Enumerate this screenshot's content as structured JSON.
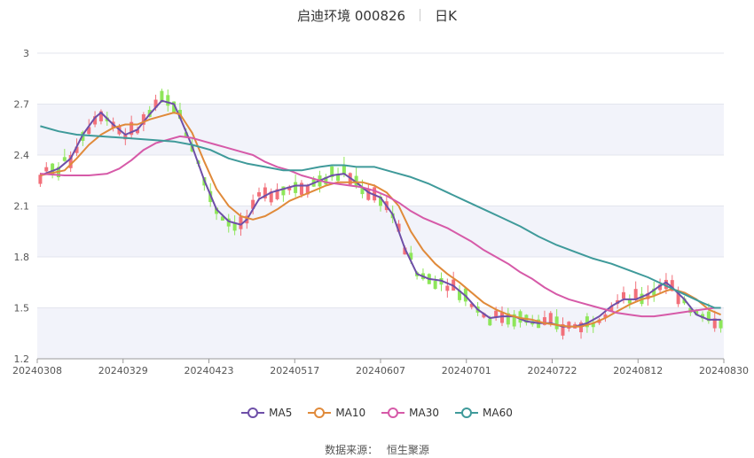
{
  "header": {
    "title": "启迪环境 000826",
    "period": "日K"
  },
  "source": {
    "label": "数据来源：",
    "name": "恒生聚源"
  },
  "colors": {
    "up": "#f2707a",
    "down": "#8ee65a",
    "MA5": "#6e4fa8",
    "MA10": "#e08a3a",
    "MA30": "#d65aa8",
    "MA60": "#3f9a9a",
    "band": "#f2f3fa",
    "grid": "#e3e5ee"
  },
  "chart_data": {
    "type": "candlestick",
    "ylim": [
      1.2,
      3.0
    ],
    "y_ticks": [
      "1.2",
      "1.5",
      "1.8",
      "2.1",
      "2.4",
      "2.7",
      "3"
    ],
    "x_tick_labels": [
      "20240308",
      "20240329",
      "20240423",
      "20240517",
      "20240607",
      "20240701",
      "20240722",
      "20240812",
      "20240830"
    ],
    "legend": [
      "MA5",
      "MA10",
      "MA30",
      "MA60"
    ],
    "ma_series": [
      {
        "name": "MA5",
        "points": [
          [
            0,
            2.28
          ],
          [
            3,
            2.32
          ],
          [
            5,
            2.38
          ],
          [
            7,
            2.52
          ],
          [
            9,
            2.62
          ],
          [
            10,
            2.65
          ],
          [
            12,
            2.58
          ],
          [
            14,
            2.52
          ],
          [
            16,
            2.55
          ],
          [
            18,
            2.64
          ],
          [
            20,
            2.72
          ],
          [
            22,
            2.7
          ],
          [
            23,
            2.62
          ],
          [
            25,
            2.45
          ],
          [
            27,
            2.25
          ],
          [
            29,
            2.08
          ],
          [
            31,
            2.01
          ],
          [
            33,
            1.99
          ],
          [
            34,
            2.02
          ],
          [
            36,
            2.14
          ],
          [
            38,
            2.18
          ],
          [
            40,
            2.2
          ],
          [
            42,
            2.22
          ],
          [
            44,
            2.22
          ],
          [
            46,
            2.25
          ],
          [
            48,
            2.28
          ],
          [
            50,
            2.29
          ],
          [
            52,
            2.24
          ],
          [
            54,
            2.18
          ],
          [
            56,
            2.15
          ],
          [
            58,
            2.05
          ],
          [
            60,
            1.85
          ],
          [
            62,
            1.7
          ],
          [
            64,
            1.67
          ],
          [
            66,
            1.66
          ],
          [
            68,
            1.63
          ],
          [
            70,
            1.57
          ],
          [
            72,
            1.49
          ],
          [
            74,
            1.44
          ],
          [
            76,
            1.45
          ],
          [
            78,
            1.45
          ],
          [
            80,
            1.42
          ],
          [
            82,
            1.41
          ],
          [
            84,
            1.41
          ],
          [
            86,
            1.39
          ],
          [
            88,
            1.39
          ],
          [
            90,
            1.41
          ],
          [
            92,
            1.45
          ],
          [
            94,
            1.51
          ],
          [
            96,
            1.55
          ],
          [
            98,
            1.55
          ],
          [
            100,
            1.58
          ],
          [
            102,
            1.63
          ],
          [
            103,
            1.65
          ],
          [
            104,
            1.62
          ],
          [
            106,
            1.55
          ],
          [
            108,
            1.46
          ],
          [
            110,
            1.43
          ],
          [
            112,
            1.43
          ]
        ]
      },
      {
        "name": "MA10",
        "points": [
          [
            0,
            2.28
          ],
          [
            4,
            2.31
          ],
          [
            6,
            2.38
          ],
          [
            8,
            2.46
          ],
          [
            10,
            2.52
          ],
          [
            12,
            2.56
          ],
          [
            14,
            2.58
          ],
          [
            16,
            2.58
          ],
          [
            18,
            2.61
          ],
          [
            20,
            2.63
          ],
          [
            22,
            2.65
          ],
          [
            23,
            2.64
          ],
          [
            25,
            2.53
          ],
          [
            27,
            2.36
          ],
          [
            29,
            2.2
          ],
          [
            31,
            2.1
          ],
          [
            33,
            2.04
          ],
          [
            35,
            2.02
          ],
          [
            37,
            2.04
          ],
          [
            39,
            2.08
          ],
          [
            41,
            2.13
          ],
          [
            43,
            2.16
          ],
          [
            45,
            2.19
          ],
          [
            47,
            2.22
          ],
          [
            49,
            2.24
          ],
          [
            51,
            2.24
          ],
          [
            53,
            2.24
          ],
          [
            55,
            2.22
          ],
          [
            57,
            2.18
          ],
          [
            59,
            2.1
          ],
          [
            61,
            1.95
          ],
          [
            63,
            1.84
          ],
          [
            65,
            1.76
          ],
          [
            67,
            1.7
          ],
          [
            69,
            1.65
          ],
          [
            71,
            1.59
          ],
          [
            73,
            1.53
          ],
          [
            75,
            1.49
          ],
          [
            77,
            1.46
          ],
          [
            79,
            1.44
          ],
          [
            81,
            1.43
          ],
          [
            83,
            1.41
          ],
          [
            85,
            1.4
          ],
          [
            87,
            1.39
          ],
          [
            89,
            1.39
          ],
          [
            91,
            1.41
          ],
          [
            93,
            1.44
          ],
          [
            95,
            1.48
          ],
          [
            97,
            1.52
          ],
          [
            99,
            1.55
          ],
          [
            101,
            1.57
          ],
          [
            103,
            1.6
          ],
          [
            104,
            1.61
          ],
          [
            106,
            1.59
          ],
          [
            108,
            1.55
          ],
          [
            110,
            1.49
          ],
          [
            112,
            1.46
          ]
        ]
      },
      {
        "name": "MA30",
        "points": [
          [
            0,
            2.29
          ],
          [
            4,
            2.28
          ],
          [
            8,
            2.28
          ],
          [
            11,
            2.29
          ],
          [
            13,
            2.32
          ],
          [
            15,
            2.37
          ],
          [
            17,
            2.43
          ],
          [
            19,
            2.47
          ],
          [
            21,
            2.49
          ],
          [
            23,
            2.51
          ],
          [
            25,
            2.5
          ],
          [
            27,
            2.48
          ],
          [
            29,
            2.46
          ],
          [
            31,
            2.44
          ],
          [
            33,
            2.42
          ],
          [
            35,
            2.4
          ],
          [
            37,
            2.36
          ],
          [
            39,
            2.33
          ],
          [
            41,
            2.31
          ],
          [
            43,
            2.28
          ],
          [
            45,
            2.26
          ],
          [
            47,
            2.24
          ],
          [
            49,
            2.23
          ],
          [
            51,
            2.22
          ],
          [
            53,
            2.21
          ],
          [
            55,
            2.19
          ],
          [
            57,
            2.16
          ],
          [
            59,
            2.12
          ],
          [
            61,
            2.07
          ],
          [
            63,
            2.03
          ],
          [
            65,
            2.0
          ],
          [
            67,
            1.97
          ],
          [
            69,
            1.93
          ],
          [
            71,
            1.89
          ],
          [
            73,
            1.84
          ],
          [
            75,
            1.8
          ],
          [
            77,
            1.76
          ],
          [
            79,
            1.71
          ],
          [
            81,
            1.67
          ],
          [
            83,
            1.62
          ],
          [
            85,
            1.58
          ],
          [
            87,
            1.55
          ],
          [
            89,
            1.53
          ],
          [
            91,
            1.51
          ],
          [
            93,
            1.49
          ],
          [
            95,
            1.47
          ],
          [
            97,
            1.46
          ],
          [
            99,
            1.45
          ],
          [
            101,
            1.45
          ],
          [
            103,
            1.46
          ],
          [
            105,
            1.47
          ],
          [
            107,
            1.48
          ],
          [
            109,
            1.49
          ],
          [
            111,
            1.5
          ],
          [
            112,
            1.5
          ]
        ]
      },
      {
        "name": "MA60",
        "points": [
          [
            0,
            2.57
          ],
          [
            3,
            2.54
          ],
          [
            6,
            2.52
          ],
          [
            10,
            2.51
          ],
          [
            14,
            2.5
          ],
          [
            18,
            2.49
          ],
          [
            22,
            2.48
          ],
          [
            25,
            2.46
          ],
          [
            28,
            2.43
          ],
          [
            31,
            2.38
          ],
          [
            34,
            2.35
          ],
          [
            37,
            2.33
          ],
          [
            40,
            2.31
          ],
          [
            43,
            2.31
          ],
          [
            46,
            2.33
          ],
          [
            48,
            2.34
          ],
          [
            50,
            2.34
          ],
          [
            52,
            2.33
          ],
          [
            55,
            2.33
          ],
          [
            58,
            2.3
          ],
          [
            61,
            2.27
          ],
          [
            64,
            2.23
          ],
          [
            67,
            2.18
          ],
          [
            70,
            2.13
          ],
          [
            73,
            2.08
          ],
          [
            76,
            2.03
          ],
          [
            79,
            1.98
          ],
          [
            82,
            1.92
          ],
          [
            85,
            1.87
          ],
          [
            88,
            1.83
          ],
          [
            91,
            1.79
          ],
          [
            94,
            1.76
          ],
          [
            97,
            1.72
          ],
          [
            100,
            1.68
          ],
          [
            103,
            1.63
          ],
          [
            106,
            1.58
          ],
          [
            109,
            1.53
          ],
          [
            111,
            1.5
          ],
          [
            112,
            1.5
          ]
        ]
      }
    ]
  }
}
